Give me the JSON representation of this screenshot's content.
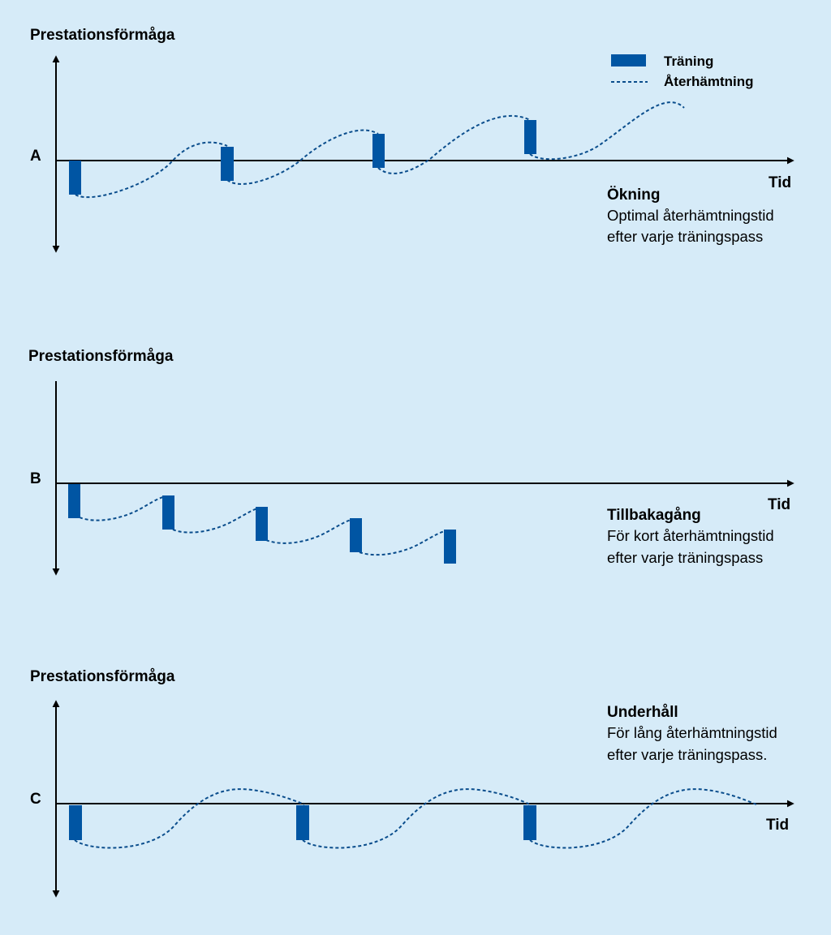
{
  "legend": {
    "training": "Träning",
    "recovery": "Återhämtning"
  },
  "colors": {
    "background": "#d6ebf8",
    "training_bar": "#0055a3",
    "recovery_line": "#0a4d8c",
    "axis": "#000000"
  },
  "panels": [
    {
      "key": "A",
      "ylabel": "Prestationsförmåga",
      "xlabel": "Tid",
      "title": "Ökning",
      "lines": [
        "Optimal återhämtningstid",
        "efter varje träningspass"
      ],
      "trend": "increase"
    },
    {
      "key": "B",
      "ylabel": "Prestationsförmåga",
      "xlabel": "Tid",
      "title": "Tillbakagång",
      "lines": [
        "För kort återhämtningstid",
        "efter varje träningspass"
      ],
      "trend": "decrease"
    },
    {
      "key": "C",
      "ylabel": "Prestationsförmåga",
      "xlabel": "Tid",
      "title": "Underhåll",
      "lines": [
        "För lång återhämtningstid",
        "efter varje träningspass."
      ],
      "trend": "maintenance"
    }
  ]
}
